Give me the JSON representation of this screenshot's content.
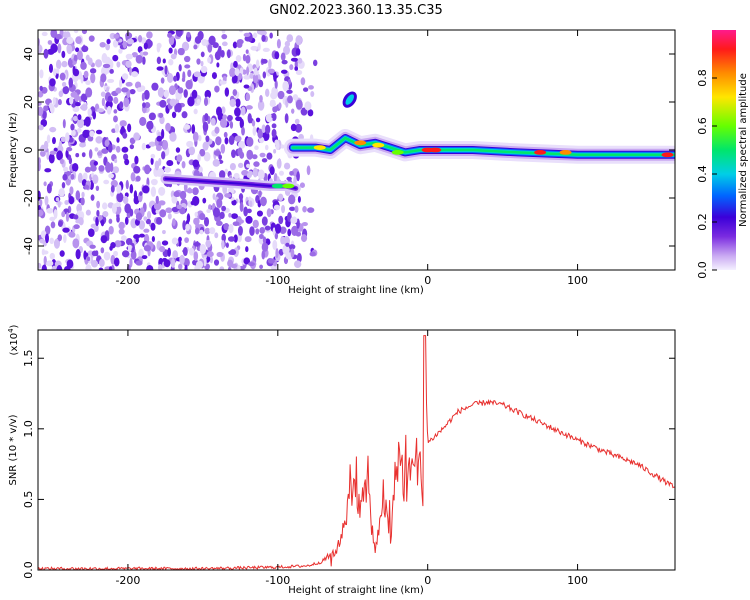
{
  "figure": {
    "title": "GN02.2023.360.13.35.C35"
  },
  "chart_data": [
    {
      "type": "heatmap",
      "xlabel": "Height of straight line (km)",
      "ylabel": "Frequency (Hz)",
      "xlim": [
        -260,
        165
      ],
      "ylim": [
        -50,
        50
      ],
      "x_ticks": [
        -200,
        -100,
        0,
        100
      ],
      "y_ticks": [
        -40,
        -20,
        0,
        20,
        40
      ],
      "colorbar": {
        "label": "Normalized spectral amplitude",
        "range": [
          0,
          1
        ],
        "ticks": [
          0.0,
          0.2,
          0.4,
          0.6,
          0.8
        ],
        "tick_labels": [
          "0.0",
          "0.2",
          "0.4",
          "0.6",
          "0.8"
        ],
        "colormap": [
          "#f5f0ff",
          "#c9a8f2",
          "#7a2be0",
          "#3b00d9",
          "#0066ff",
          "#00cfe6",
          "#00e66b",
          "#66ff00",
          "#ffe600",
          "#ff8c00",
          "#ff1a1a",
          "#ff1a8c"
        ]
      },
      "features": {
        "noise_region_x": [
          -260,
          -85
        ],
        "pre_track": [
          [
            -175,
            -12
          ],
          [
            -150,
            -13
          ],
          [
            -125,
            -14
          ],
          [
            -105,
            -15
          ],
          [
            -95,
            -15
          ],
          [
            -88,
            -16
          ]
        ],
        "main_track": [
          [
            -90,
            1
          ],
          [
            -75,
            1
          ],
          [
            -65,
            0
          ],
          [
            -55,
            5
          ],
          [
            -45,
            2
          ],
          [
            -35,
            3
          ],
          [
            -25,
            1
          ],
          [
            -15,
            -1
          ],
          [
            -5,
            0
          ],
          [
            0,
            0
          ],
          [
            30,
            0
          ],
          [
            60,
            -1
          ],
          [
            100,
            -2
          ],
          [
            140,
            -2
          ],
          [
            165,
            -2
          ]
        ],
        "upper_blob": [
          -52,
          21
        ]
      }
    },
    {
      "type": "line",
      "xlabel": "Height of straight line (km)",
      "ylabel": "SNR (10 * v/v)",
      "y_exponent_label": "(x10",
      "y_exponent": "4",
      "y_exponent_close": ")",
      "xlim": [
        -260,
        165
      ],
      "ylim": [
        0,
        1.7
      ],
      "x_ticks": [
        -200,
        -100,
        0,
        100
      ],
      "y_ticks": [
        0.0,
        0.5,
        1.0,
        1.5
      ],
      "y_tick_labels": [
        "0.0",
        "0.5",
        "1.0",
        "1.5"
      ],
      "line_color": "#e8312f",
      "series": [
        {
          "x": [
            -260,
            -200,
            -150,
            -100,
            -80,
            -70,
            -60,
            -55,
            -50,
            -45,
            -40,
            -35,
            -30,
            -25,
            -20,
            -15,
            -10,
            -5,
            -3,
            -2,
            0,
            10,
            20,
            30,
            40,
            50,
            60,
            80,
            100,
            120,
            140,
            165
          ],
          "values": [
            0.01,
            0.01,
            0.01,
            0.02,
            0.03,
            0.06,
            0.15,
            0.4,
            0.55,
            0.45,
            0.6,
            0.1,
            0.55,
            0.2,
            0.85,
            0.6,
            0.8,
            0.75,
            0.4,
            1.66,
            0.9,
            1.0,
            1.12,
            1.17,
            1.19,
            1.17,
            1.12,
            1.02,
            0.92,
            0.83,
            0.75,
            0.58
          ]
        }
      ]
    }
  ]
}
